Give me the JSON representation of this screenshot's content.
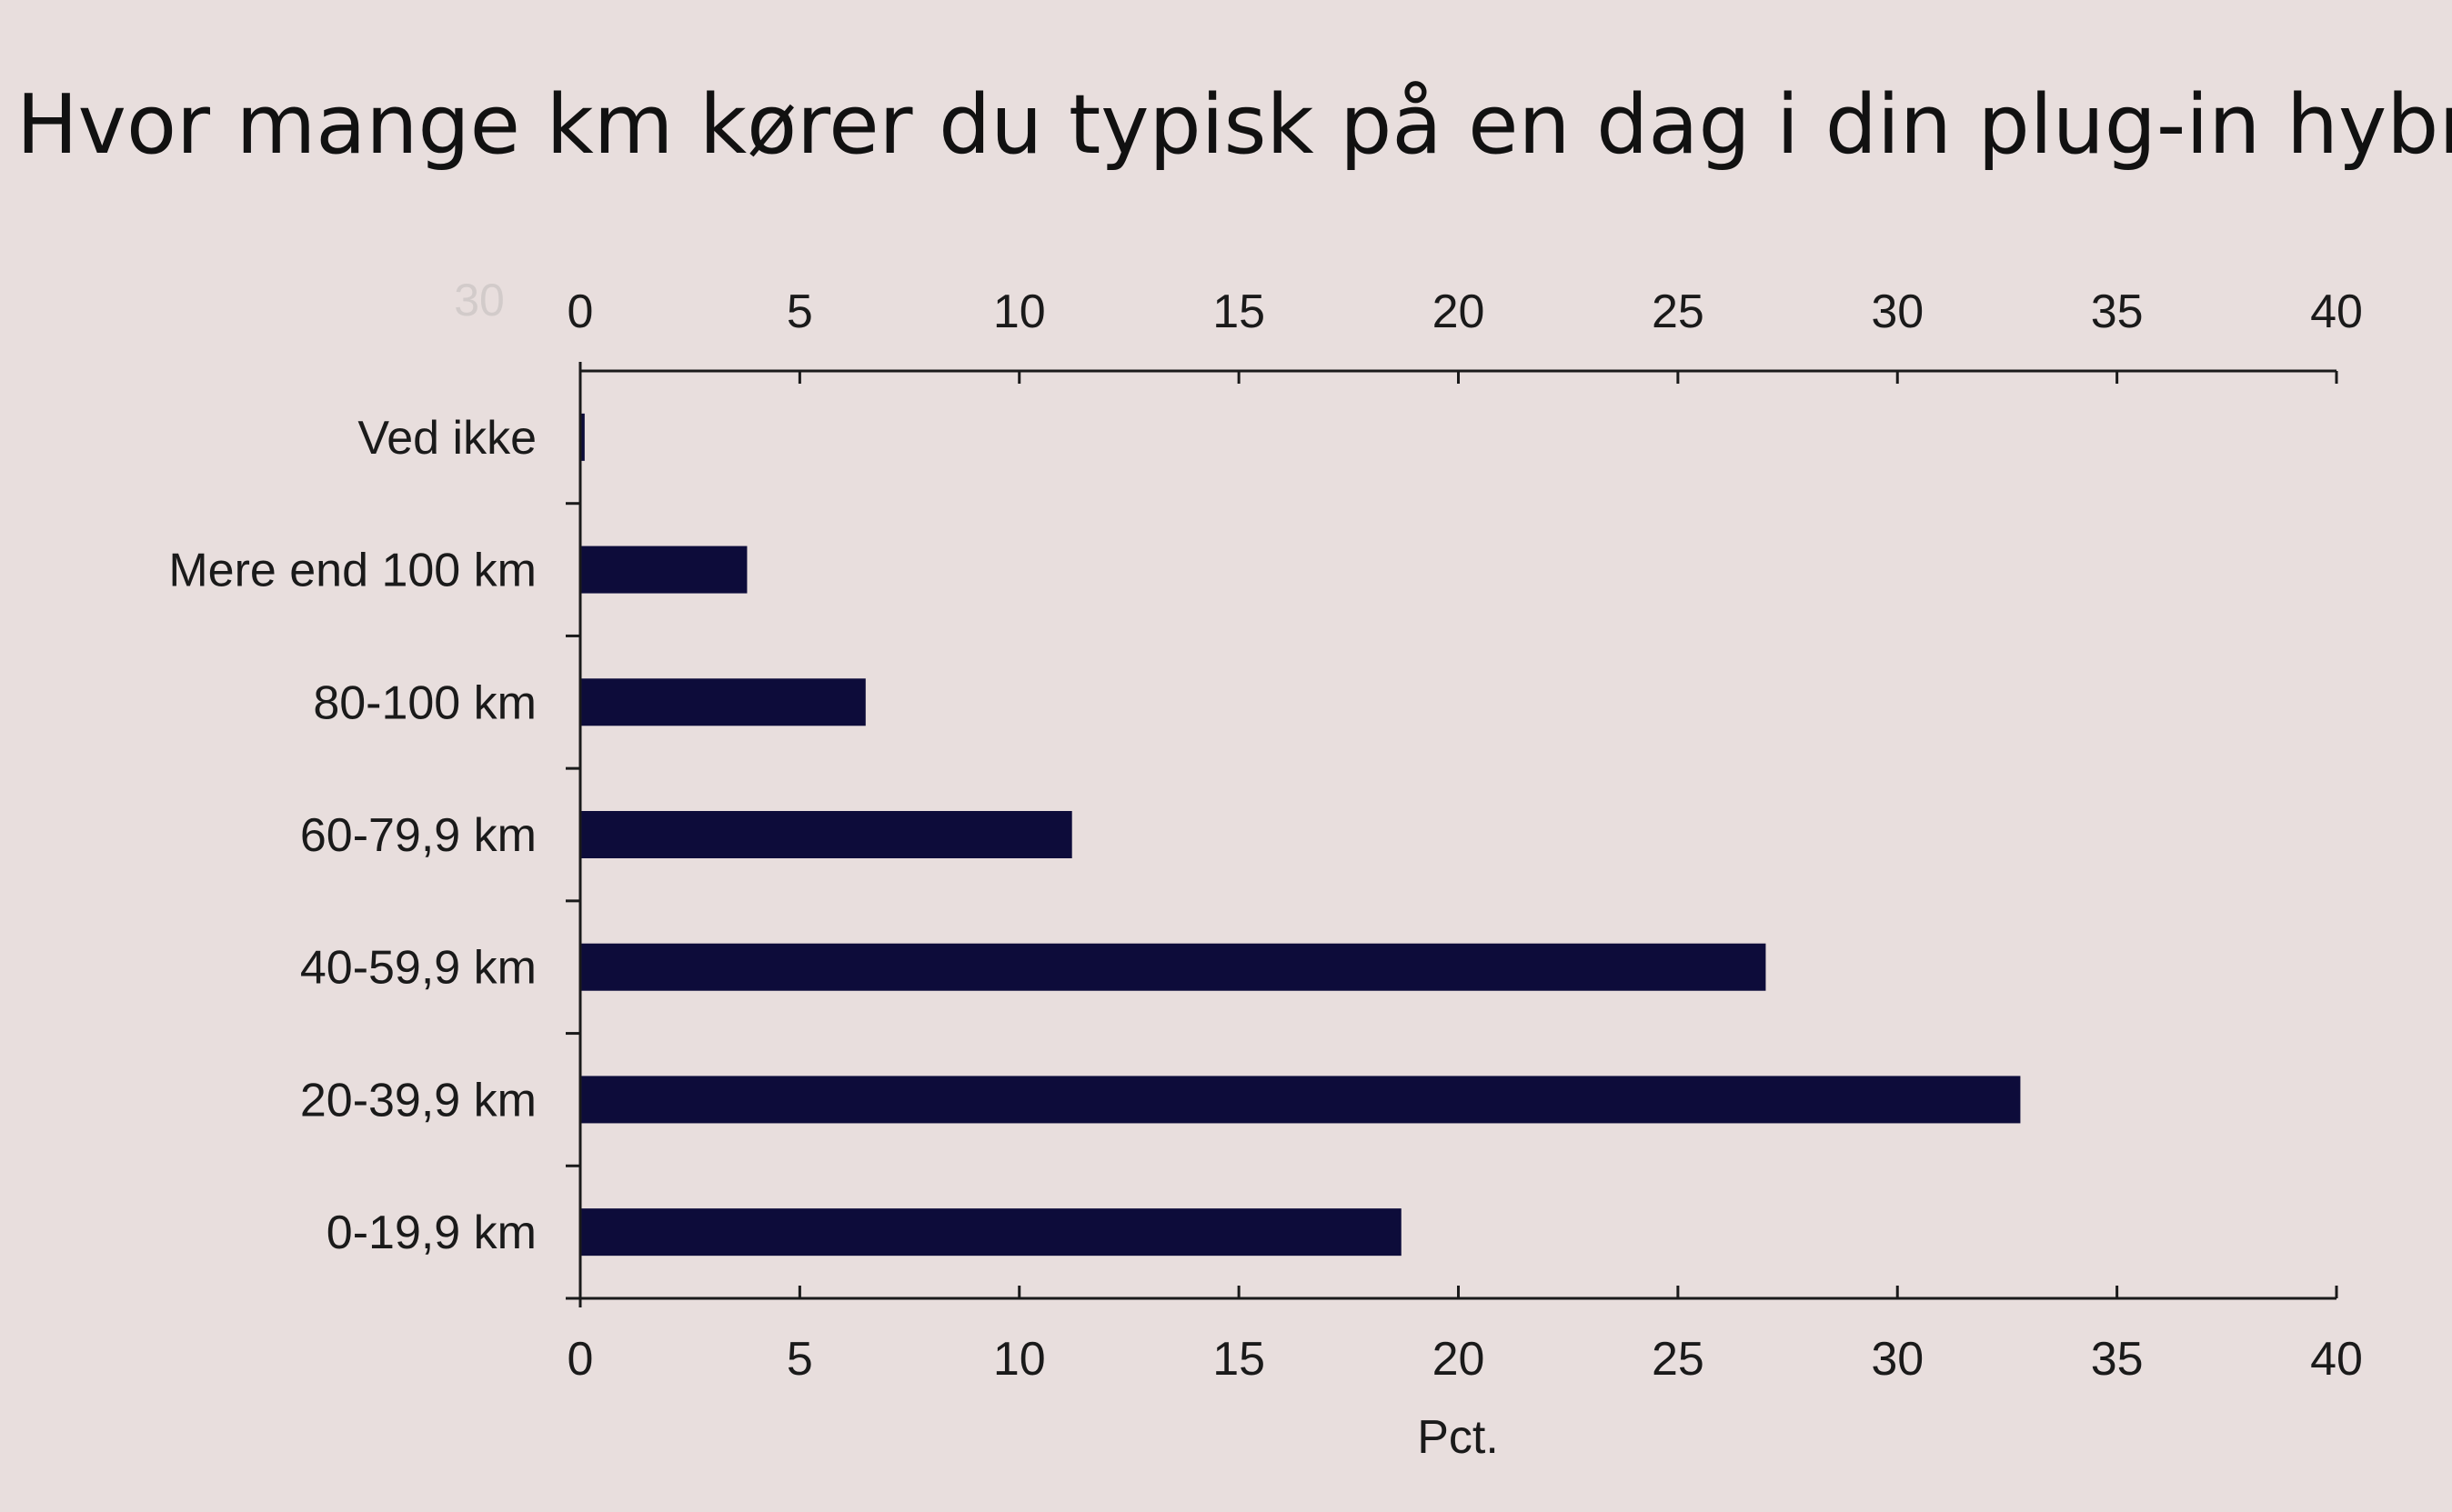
{
  "chart_data": {
    "type": "bar",
    "orientation": "horizontal",
    "title": "Hvor mange km kører du typisk på en dag i din plug-in hybridbil?",
    "xlabel": "Pct.",
    "ylabel": "",
    "xlim": [
      0,
      40
    ],
    "xticks": [
      "0",
      "5",
      "10",
      "15",
      "20",
      "25",
      "30",
      "35",
      "40"
    ],
    "top_axis": true,
    "grid": false,
    "legend": "none",
    "categories": [
      "Ved ikke",
      "Mere end 100 km",
      "80-100 km",
      "60-79,9 km",
      "40-59,9 km",
      "20-39,9 km",
      "0-19,9 km"
    ],
    "values": [
      0.1,
      3.8,
      6.5,
      11.2,
      27.0,
      32.8,
      18.7
    ],
    "bar_color": "#0d0c3a",
    "ghost_text": "30"
  }
}
